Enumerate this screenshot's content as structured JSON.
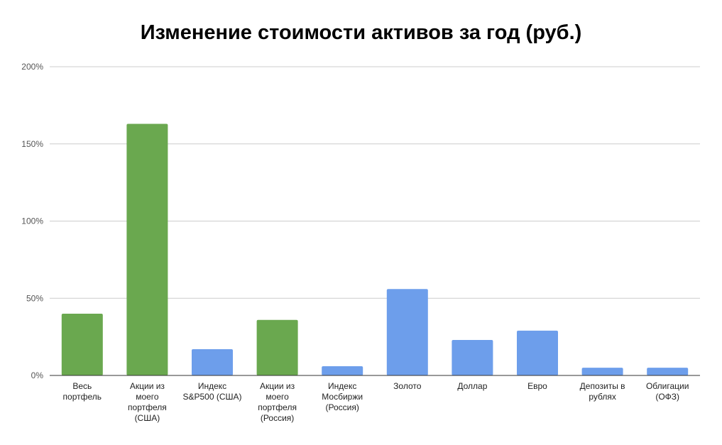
{
  "chart_data": {
    "type": "bar",
    "title": "Изменение стоимости активов за год (руб.)",
    "xlabel": "",
    "ylabel": "",
    "ylim": [
      0,
      200
    ],
    "yticks": [
      "0%",
      "50%",
      "100%",
      "150%",
      "200%"
    ],
    "grid": true,
    "categories": [
      [
        "Весь",
        "портфель"
      ],
      [
        "Акции из",
        "моего",
        "портфеля",
        "(США)"
      ],
      [
        "Индекс",
        "S&P500 (США)"
      ],
      [
        "Акции из",
        "моего",
        "портфеля",
        "(Россия)"
      ],
      [
        "Индекс",
        "Мосбиржи",
        "(Россия)"
      ],
      [
        "Золото"
      ],
      [
        "Доллар"
      ],
      [
        "Евро"
      ],
      [
        "Депозиты в",
        "рублях"
      ],
      [
        "Облигации",
        "(ОФЗ)"
      ]
    ],
    "values": [
      40,
      163,
      17,
      36,
      6,
      56,
      23,
      29,
      5,
      5
    ],
    "bar_colors": [
      "#6aa84f",
      "#6aa84f",
      "#6d9eeb",
      "#6aa84f",
      "#6d9eeb",
      "#6d9eeb",
      "#6d9eeb",
      "#6d9eeb",
      "#6d9eeb",
      "#6d9eeb"
    ]
  }
}
